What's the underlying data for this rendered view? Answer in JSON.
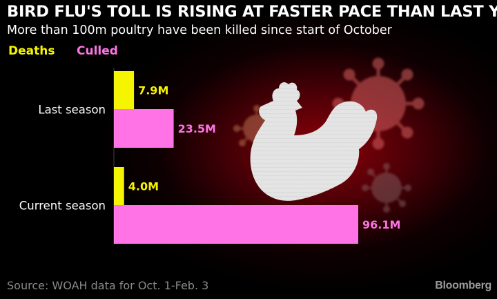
{
  "chart_data": {
    "type": "bar",
    "orientation": "horizontal",
    "title": "BIRD FLU'S TOLL IS RISING AT FASTER PACE THAN LAST YEAR",
    "subtitle": "More than 100m poultry have been killed since start of October",
    "categories": [
      "Last season",
      "Current season"
    ],
    "series": [
      {
        "name": "Deaths",
        "color": "#f5f500",
        "values": [
          7.9,
          4.0
        ],
        "labels": [
          "7.9M",
          "4.0M"
        ]
      },
      {
        "name": "Culled",
        "color": "#ff73e6",
        "values": [
          23.5,
          96.1
        ],
        "labels": [
          "23.5M",
          "96.1M"
        ]
      }
    ],
    "unit": "M",
    "xlim": [
      0,
      100
    ],
    "grid": false,
    "legend_position": "top-left",
    "source": "Source: WOAH data for Oct. 1-Feb. 3",
    "brand": "Bloomberg",
    "background_illustration": [
      "rooster-illustration",
      "virus-icon"
    ]
  }
}
